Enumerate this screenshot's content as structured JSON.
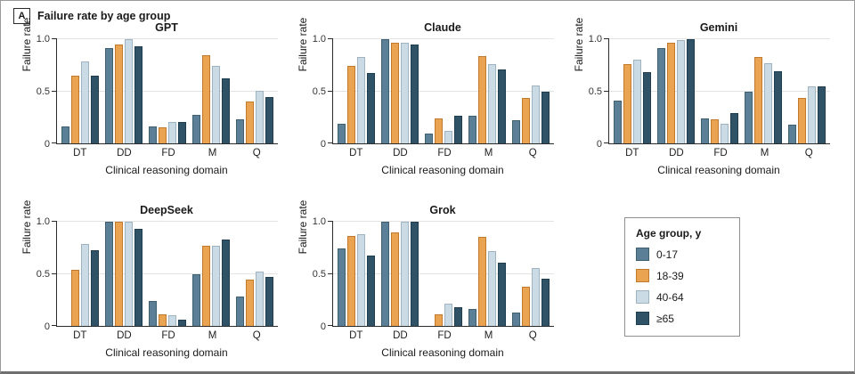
{
  "figure": {
    "panel_key": "A",
    "header_title": "Failure rate by age group"
  },
  "legend": {
    "title": "Age group, y",
    "entries": [
      {
        "label": "0-17",
        "color": "#5B7F96",
        "border": "#3E606F"
      },
      {
        "label": "18-39",
        "color": "#E9A351",
        "border": "#C07A2E"
      },
      {
        "label": "40-64",
        "color": "#CBDBE5",
        "border": "#9FB4C0"
      },
      {
        "label": "≥65",
        "color": "#2F5266",
        "border": "#1E3D4E"
      }
    ]
  },
  "axes": {
    "ylabel": "Failure rate",
    "xlabel": "Clinical reasoning domain",
    "yticks": [
      {
        "value": 1.0,
        "label": "1.0"
      },
      {
        "value": 0.5,
        "label": "0.5"
      },
      {
        "value": 0,
        "label": "0"
      }
    ],
    "ylim": [
      0,
      1
    ],
    "grid_values": [
      0.5,
      1.0
    ]
  },
  "chart_data": [
    {
      "type": "bar",
      "title": "GPT",
      "categories": [
        "DT",
        "DD",
        "FD",
        "M",
        "Q"
      ],
      "series": [
        {
          "name": "0-17",
          "values": [
            0.16,
            0.91,
            0.16,
            0.27,
            0.23
          ]
        },
        {
          "name": "18-39",
          "values": [
            0.64,
            0.94,
            0.15,
            0.84,
            0.4
          ]
        },
        {
          "name": "40-64",
          "values": [
            0.78,
            0.99,
            0.2,
            0.74,
            0.5
          ]
        },
        {
          "name": "≥65",
          "values": [
            0.64,
            0.92,
            0.2,
            0.62,
            0.44
          ]
        }
      ]
    },
    {
      "type": "bar",
      "title": "Claude",
      "categories": [
        "DT",
        "DD",
        "FD",
        "M",
        "Q"
      ],
      "series": [
        {
          "name": "0-17",
          "values": [
            0.19,
            0.99,
            0.09,
            0.26,
            0.22
          ]
        },
        {
          "name": "18-39",
          "values": [
            0.74,
            0.96,
            0.24,
            0.83,
            0.43
          ]
        },
        {
          "name": "40-64",
          "values": [
            0.82,
            0.96,
            0.12,
            0.75,
            0.55
          ]
        },
        {
          "name": "≥65",
          "values": [
            0.67,
            0.94,
            0.26,
            0.7,
            0.49
          ]
        }
      ]
    },
    {
      "type": "bar",
      "title": "Gemini",
      "categories": [
        "DT",
        "DD",
        "FD",
        "M",
        "Q"
      ],
      "series": [
        {
          "name": "0-17",
          "values": [
            0.41,
            0.91,
            0.24,
            0.49,
            0.18
          ]
        },
        {
          "name": "18-39",
          "values": [
            0.75,
            0.96,
            0.23,
            0.82,
            0.43
          ]
        },
        {
          "name": "40-64",
          "values": [
            0.8,
            0.98,
            0.19,
            0.76,
            0.54
          ]
        },
        {
          "name": "≥65",
          "values": [
            0.68,
            0.99,
            0.29,
            0.69,
            0.54
          ]
        }
      ]
    },
    {
      "type": "bar",
      "title": "DeepSeek",
      "categories": [
        "DT",
        "DD",
        "FD",
        "M",
        "Q"
      ],
      "series": [
        {
          "name": "0-17",
          "values": [
            0,
            0.99,
            0.24,
            0.49,
            0.28
          ]
        },
        {
          "name": "18-39",
          "values": [
            0.53,
            0.99,
            0.11,
            0.76,
            0.44
          ]
        },
        {
          "name": "40-64",
          "values": [
            0.78,
            0.99,
            0.1,
            0.76,
            0.52
          ]
        },
        {
          "name": "≥65",
          "values": [
            0.72,
            0.92,
            0.06,
            0.82,
            0.47
          ]
        }
      ]
    },
    {
      "type": "bar",
      "title": "Grok",
      "categories": [
        "DT",
        "DD",
        "FD",
        "M",
        "Q"
      ],
      "series": [
        {
          "name": "0-17",
          "values": [
            0.74,
            0.99,
            0,
            0.16,
            0.13
          ]
        },
        {
          "name": "18-39",
          "values": [
            0.86,
            0.89,
            0.11,
            0.85,
            0.37
          ]
        },
        {
          "name": "40-64",
          "values": [
            0.87,
            0.99,
            0.21,
            0.71,
            0.55
          ]
        },
        {
          "name": "≥65",
          "values": [
            0.67,
            0.99,
            0.18,
            0.6,
            0.45
          ]
        }
      ]
    }
  ]
}
